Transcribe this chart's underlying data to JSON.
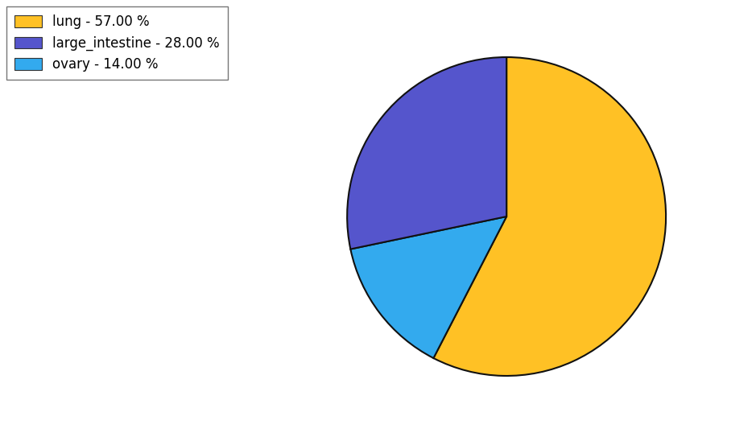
{
  "labels": [
    "lung",
    "ovary",
    "large_intestine"
  ],
  "sizes": [
    57.0,
    14.0,
    28.0
  ],
  "colors": [
    "#FFC125",
    "#33AAEE",
    "#5555CC"
  ],
  "legend_labels": [
    "lung - 57.00 %",
    "large_intestine - 28.00 %",
    "ovary - 14.00 %"
  ],
  "legend_colors": [
    "#FFC125",
    "#5555CC",
    "#33AAEE"
  ],
  "startangle": 90,
  "background_color": "#ffffff",
  "edge_color": "#111111",
  "edge_width": 1.5,
  "legend_fontsize": 12
}
